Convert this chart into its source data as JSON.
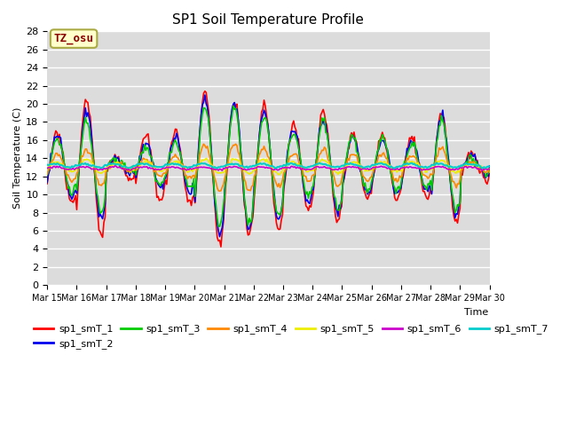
{
  "title": "SP1 Soil Temperature Profile",
  "xlabel": "Time",
  "ylabel": "Soil Temperature (C)",
  "ylim": [
    0,
    28
  ],
  "annotation": "TZ_osu",
  "bg_color": "#dcdcdc",
  "series_order": [
    "sp1_smT_1",
    "sp1_smT_2",
    "sp1_smT_3",
    "sp1_smT_4",
    "sp1_smT_5",
    "sp1_smT_6",
    "sp1_smT_7"
  ],
  "series": {
    "sp1_smT_1": {
      "color": "#ff0000",
      "linewidth": 1.2
    },
    "sp1_smT_2": {
      "color": "#0000ee",
      "linewidth": 1.2
    },
    "sp1_smT_3": {
      "color": "#00cc00",
      "linewidth": 1.2
    },
    "sp1_smT_4": {
      "color": "#ff8800",
      "linewidth": 1.2
    },
    "sp1_smT_5": {
      "color": "#eeee00",
      "linewidth": 1.2
    },
    "sp1_smT_6": {
      "color": "#cc00cc",
      "linewidth": 1.2
    },
    "sp1_smT_7": {
      "color": "#00cccc",
      "linewidth": 1.5
    }
  },
  "xtick_labels": [
    "Mar 15",
    "Mar 16",
    "Mar 17",
    "Mar 18",
    "Mar 19",
    "Mar 20",
    "Mar 21",
    "Mar 22",
    "Mar 23",
    "Mar 24",
    "Mar 25",
    "Mar 26",
    "Mar 27",
    "Mar 28",
    "Mar 29",
    "Mar 30"
  ],
  "ytick_values": [
    0,
    2,
    4,
    6,
    8,
    10,
    12,
    14,
    16,
    18,
    20,
    22,
    24,
    26,
    28
  ]
}
